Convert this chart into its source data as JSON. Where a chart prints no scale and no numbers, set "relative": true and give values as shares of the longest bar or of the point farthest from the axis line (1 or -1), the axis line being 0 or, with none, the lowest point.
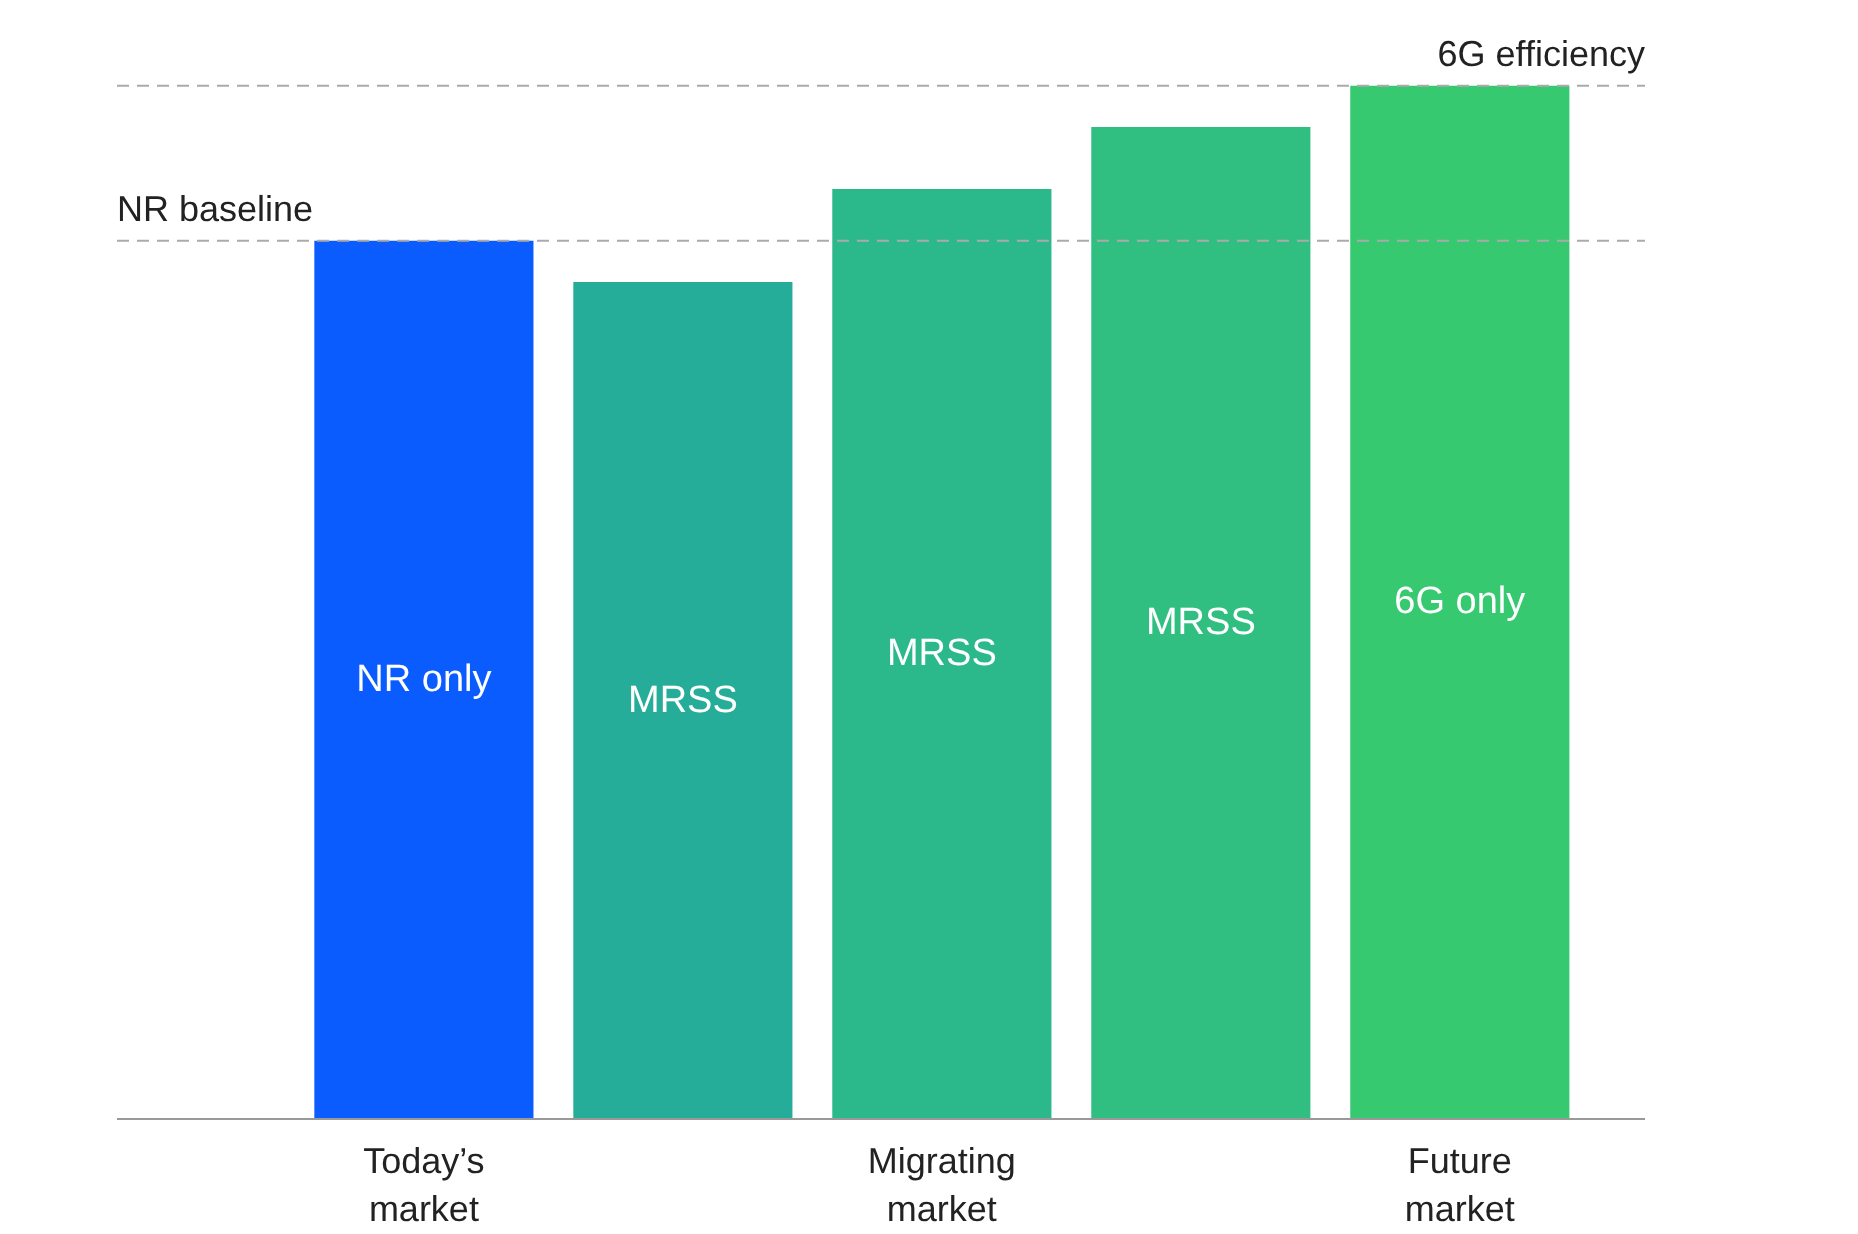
{
  "chart_data": {
    "type": "bar",
    "relative": true,
    "categories": [
      "Today’s market",
      null,
      "Migrating market",
      null,
      "Future market"
    ],
    "values": [
      0.85,
      0.81,
      0.9,
      0.96,
      1
    ],
    "colors": [
      "#0a5cff",
      "#25ad99",
      "#2bb88a",
      "#30bf80",
      "#36c96f"
    ],
    "annotations": [
      "NR only",
      "MRSS",
      "MRSS",
      "MRSS",
      "6G only"
    ],
    "ref_lines": [
      {
        "axis": "y",
        "value": 0.85,
        "label": "NR baseline",
        "color": "#aaaaaa",
        "line_style": "dashed"
      },
      {
        "axis": "y",
        "value": 1,
        "label": "6G efficiency",
        "color": "#aaaaaa",
        "line_style": "dashed"
      }
    ],
    "grid": false
  }
}
